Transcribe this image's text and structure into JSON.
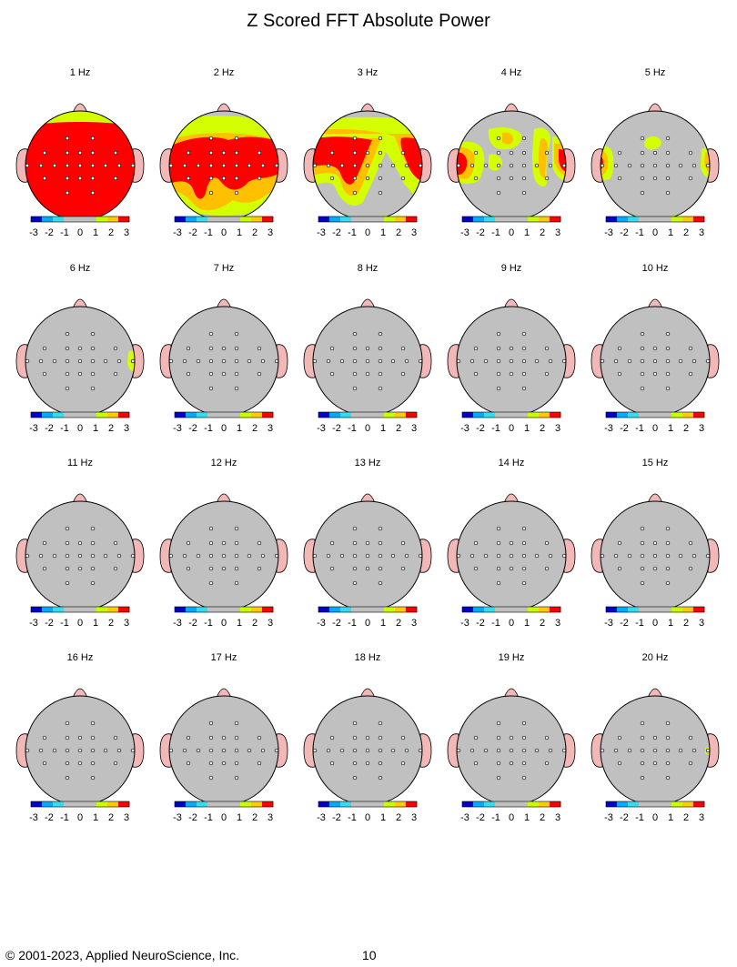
{
  "page": {
    "title": "Z Scored FFT Absolute Power",
    "footer_copyright": "© 2001-2023, Applied NeuroScience, Inc.",
    "page_number": "10"
  },
  "scale": {
    "ticks": [
      "-3",
      "-2",
      "-1",
      "0",
      "1",
      "2",
      "3"
    ],
    "colors": [
      "#0000cc",
      "#00aaff",
      "#33ddee",
      "#c0c0c0",
      "#c0c0c0",
      "#c0c0c0",
      "#c8ff00",
      "#ffcc00",
      "#ff0000"
    ]
  },
  "colors": {
    "head_fill": "#c0c0c0",
    "ear_nose": "#f2b8b8",
    "red": "#ff0000",
    "orange": "#ffc000",
    "yellow": "#d4ff00",
    "outline": "#000000"
  },
  "maps": [
    {
      "label": "1 Hz",
      "pattern": "1hz"
    },
    {
      "label": "2 Hz",
      "pattern": "2hz"
    },
    {
      "label": "3 Hz",
      "pattern": "3hz"
    },
    {
      "label": "4 Hz",
      "pattern": "4hz"
    },
    {
      "label": "5 Hz",
      "pattern": "5hz"
    },
    {
      "label": "6 Hz",
      "pattern": "6hz"
    },
    {
      "label": "7 Hz",
      "pattern": "none"
    },
    {
      "label": "8 Hz",
      "pattern": "none"
    },
    {
      "label": "9 Hz",
      "pattern": "none"
    },
    {
      "label": "10 Hz",
      "pattern": "none"
    },
    {
      "label": "11 Hz",
      "pattern": "none"
    },
    {
      "label": "12 Hz",
      "pattern": "none"
    },
    {
      "label": "13 Hz",
      "pattern": "none"
    },
    {
      "label": "14 Hz",
      "pattern": "none"
    },
    {
      "label": "15 Hz",
      "pattern": "none"
    },
    {
      "label": "16 Hz",
      "pattern": "none"
    },
    {
      "label": "17 Hz",
      "pattern": "none"
    },
    {
      "label": "18 Hz",
      "pattern": "none"
    },
    {
      "label": "19 Hz",
      "pattern": "none"
    },
    {
      "label": "20 Hz",
      "pattern": "20hz"
    }
  ]
}
